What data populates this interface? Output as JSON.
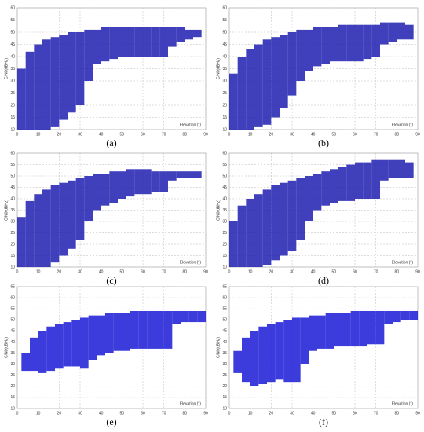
{
  "chart_data": [
    {
      "type": "range",
      "label": "(a)",
      "xlabel": "Elevation (°)",
      "ylabel": "C/N0(dBHz)",
      "color": "#1f1fb0",
      "grid": true,
      "xlim": [
        0,
        90
      ],
      "ylim": [
        10,
        60
      ],
      "xticks": [
        0,
        10,
        20,
        30,
        40,
        50,
        60,
        70,
        80,
        90
      ],
      "yticks": [
        10,
        15,
        20,
        25,
        30,
        35,
        40,
        45,
        50,
        55,
        60
      ],
      "x": [
        2,
        6,
        10,
        14,
        18,
        22,
        26,
        30,
        34,
        38,
        42,
        46,
        50,
        54,
        58,
        62,
        66,
        70,
        74,
        78,
        82,
        86
      ],
      "low": [
        10,
        10,
        10,
        10,
        11,
        14,
        17,
        20,
        30,
        37,
        38,
        39,
        40,
        40,
        40,
        40,
        40,
        40,
        44,
        46,
        47,
        48
      ],
      "high": [
        35,
        42,
        45,
        47,
        48,
        49,
        50,
        50,
        51,
        51,
        52,
        52,
        52,
        52,
        52,
        52,
        52,
        52,
        52,
        52,
        51,
        51
      ]
    },
    {
      "type": "range",
      "label": "(b)",
      "xlabel": "Elevation (°)",
      "ylabel": "C/N0(dBHz)",
      "color": "#1f1fb0",
      "grid": true,
      "xlim": [
        0,
        90
      ],
      "ylim": [
        10,
        60
      ],
      "xticks": [
        0,
        10,
        20,
        30,
        40,
        50,
        60,
        70,
        80,
        90
      ],
      "yticks": [
        10,
        15,
        20,
        25,
        30,
        35,
        40,
        45,
        50,
        55,
        60
      ],
      "x": [
        2,
        6,
        10,
        14,
        18,
        22,
        26,
        30,
        34,
        38,
        42,
        46,
        50,
        54,
        58,
        62,
        66,
        70,
        74,
        78,
        82,
        86
      ],
      "low": [
        10,
        10,
        10,
        11,
        12,
        15,
        19,
        24,
        30,
        34,
        36,
        37,
        38,
        38,
        38,
        38,
        39,
        40,
        45,
        46,
        47,
        47
      ],
      "high": [
        33,
        40,
        43,
        45,
        47,
        48,
        49,
        50,
        51,
        51,
        52,
        52,
        52,
        53,
        53,
        53,
        53,
        53,
        54,
        54,
        54,
        53
      ]
    },
    {
      "type": "range",
      "label": "(c)",
      "xlabel": "Elevation (°)",
      "ylabel": "C/N0(dBHz)",
      "color": "#1f1fb0",
      "grid": true,
      "xlim": [
        0,
        90
      ],
      "ylim": [
        10,
        60
      ],
      "xticks": [
        0,
        10,
        20,
        30,
        40,
        50,
        60,
        70,
        80,
        90
      ],
      "yticks": [
        10,
        15,
        20,
        25,
        30,
        35,
        40,
        45,
        50,
        55,
        60
      ],
      "x": [
        2,
        6,
        10,
        14,
        18,
        22,
        26,
        30,
        34,
        38,
        42,
        46,
        50,
        54,
        58,
        62,
        66,
        70,
        74,
        78,
        82,
        86
      ],
      "low": [
        10,
        10,
        10,
        10,
        12,
        15,
        18,
        22,
        30,
        35,
        37,
        38,
        40,
        41,
        42,
        42,
        43,
        43,
        48,
        49,
        49,
        49
      ],
      "high": [
        32,
        39,
        42,
        44,
        46,
        47,
        48,
        49,
        50,
        51,
        51,
        52,
        52,
        53,
        53,
        53,
        52,
        52,
        52,
        52,
        52,
        52
      ]
    },
    {
      "type": "range",
      "label": "(d)",
      "xlabel": "Elevation (°)",
      "ylabel": "C/N0(dBHz)",
      "color": "#1f1fb0",
      "grid": true,
      "xlim": [
        0,
        90
      ],
      "ylim": [
        10,
        60
      ],
      "xticks": [
        0,
        10,
        20,
        30,
        40,
        50,
        60,
        70,
        80,
        90
      ],
      "yticks": [
        10,
        15,
        20,
        25,
        30,
        35,
        40,
        45,
        50,
        55,
        60
      ],
      "x": [
        2,
        6,
        10,
        14,
        18,
        22,
        26,
        30,
        34,
        38,
        42,
        46,
        50,
        54,
        58,
        62,
        66,
        70,
        74,
        78,
        82,
        86
      ],
      "low": [
        10,
        10,
        10,
        10,
        11,
        13,
        15,
        17,
        22,
        30,
        35,
        37,
        38,
        39,
        39,
        40,
        40,
        40,
        48,
        49,
        49,
        49
      ],
      "high": [
        30,
        37,
        40,
        42,
        44,
        46,
        47,
        48,
        49,
        50,
        51,
        52,
        53,
        54,
        55,
        56,
        56,
        57,
        57,
        57,
        57,
        56
      ]
    },
    {
      "type": "range",
      "label": "(e)",
      "xlabel": "Elevation (°)",
      "ylabel": "C/N0(dBHz)",
      "color": "#1a1ad6",
      "grid": true,
      "xlim": [
        0,
        90
      ],
      "ylim": [
        10,
        65
      ],
      "xticks": [
        0,
        10,
        20,
        30,
        40,
        50,
        60,
        70,
        80,
        90
      ],
      "yticks": [
        10,
        15,
        20,
        25,
        30,
        35,
        40,
        45,
        50,
        55,
        60,
        65
      ],
      "x": [
        4,
        8,
        12,
        16,
        20,
        24,
        28,
        32,
        36,
        40,
        44,
        48,
        52,
        56,
        60,
        64,
        68,
        72,
        76,
        80,
        84,
        88
      ],
      "low": [
        27,
        27,
        26,
        27,
        28,
        29,
        29,
        28,
        32,
        34,
        35,
        36,
        36,
        37,
        37,
        37,
        37,
        37,
        48,
        49,
        49,
        49
      ],
      "high": [
        35,
        42,
        45,
        47,
        48,
        49,
        50,
        51,
        52,
        52,
        53,
        53,
        53,
        54,
        54,
        54,
        54,
        54,
        54,
        54,
        54,
        54
      ]
    },
    {
      "type": "range",
      "label": "(f)",
      "xlabel": "Elevation (°)",
      "ylabel": "C/N0(dBHz)",
      "color": "#1a1ad6",
      "grid": true,
      "xlim": [
        0,
        90
      ],
      "ylim": [
        10,
        65
      ],
      "xticks": [
        0,
        10,
        20,
        30,
        40,
        50,
        60,
        70,
        80,
        90
      ],
      "yticks": [
        10,
        15,
        20,
        25,
        30,
        35,
        40,
        45,
        50,
        55,
        60,
        65
      ],
      "x": [
        4,
        8,
        12,
        16,
        20,
        24,
        28,
        32,
        36,
        40,
        44,
        48,
        52,
        56,
        60,
        64,
        68,
        72,
        76,
        80,
        84,
        88
      ],
      "low": [
        26,
        22,
        20,
        21,
        22,
        23,
        22,
        22,
        30,
        36,
        37,
        37,
        38,
        38,
        38,
        38,
        39,
        39,
        48,
        49,
        50,
        50
      ],
      "high": [
        36,
        42,
        45,
        47,
        48,
        49,
        50,
        51,
        51,
        52,
        52,
        53,
        53,
        53,
        54,
        54,
        54,
        54,
        54,
        54,
        54,
        54
      ]
    }
  ]
}
